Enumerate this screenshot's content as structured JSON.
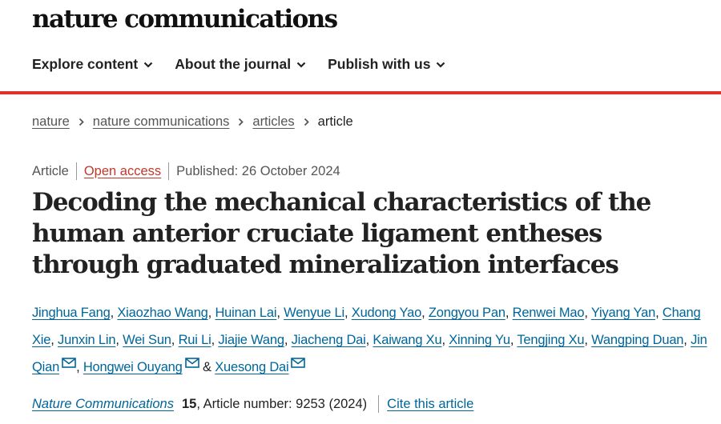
{
  "site": {
    "logo": "nature communications"
  },
  "nav": {
    "items": [
      "Explore content",
      "About the journal",
      "Publish with us"
    ]
  },
  "breadcrumb": {
    "items": [
      "nature",
      "nature communications",
      "articles"
    ],
    "current": "article"
  },
  "meta": {
    "type": "Article",
    "access": "Open access",
    "published": "Published: 26 October 2024"
  },
  "article": {
    "title": "Decoding the mechanical characteristics of the human anterior cruciate ligament entheses through graduated mineralization interfaces",
    "authors": [
      {
        "name": "Jinghua Fang",
        "corresponding": false
      },
      {
        "name": "Xiaozhao Wang",
        "corresponding": false
      },
      {
        "name": "Huinan Lai",
        "corresponding": false
      },
      {
        "name": "Wenyue Li",
        "corresponding": false
      },
      {
        "name": "Xudong Yao",
        "corresponding": false
      },
      {
        "name": "Zongyou Pan",
        "corresponding": false
      },
      {
        "name": "Renwei Mao",
        "corresponding": false
      },
      {
        "name": "Yiyang Yan",
        "corresponding": false
      },
      {
        "name": "Chang Xie",
        "corresponding": false
      },
      {
        "name": "Junxin Lin",
        "corresponding": false
      },
      {
        "name": "Wei Sun",
        "corresponding": false
      },
      {
        "name": "Rui Li",
        "corresponding": false
      },
      {
        "name": "Jiajie Wang",
        "corresponding": false
      },
      {
        "name": "Jiacheng Dai",
        "corresponding": false
      },
      {
        "name": "Kaiwang Xu",
        "corresponding": false
      },
      {
        "name": "Xinning Yu",
        "corresponding": false
      },
      {
        "name": "Tengjing Xu",
        "corresponding": false
      },
      {
        "name": "Wangping Duan",
        "corresponding": false
      },
      {
        "name": "Jin Qian",
        "corresponding": true
      },
      {
        "name": "Hongwei Ouyang",
        "corresponding": true
      },
      {
        "name": "Xuesong Dai",
        "corresponding": true
      }
    ]
  },
  "citation": {
    "journal": "Nature Communications",
    "volume": "15",
    "article_number": ", Article number: 9253 (2024)",
    "cite_label": "Cite this article"
  },
  "colors": {
    "accent_red": "#e0322a",
    "link_blue": "#006699",
    "open_access": "#c0392b"
  },
  "icons": {
    "nav_chevron": "chevron-down-icon",
    "breadcrumb_separator": "chevron-right-icon",
    "author_contact": "mail-icon"
  }
}
